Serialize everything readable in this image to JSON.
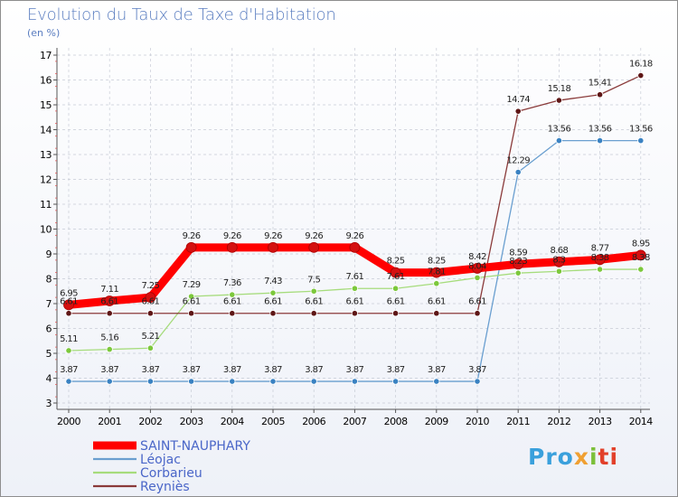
{
  "title": "Evolution du Taux de Taxe d'Habitation",
  "subtitle": "(en %)",
  "logo": {
    "p1": "Pro",
    "p2": "x",
    "p3": "i",
    "p4": "ti"
  },
  "chart_data": {
    "type": "line",
    "x": [
      2000,
      2001,
      2002,
      2003,
      2004,
      2005,
      2006,
      2007,
      2008,
      2009,
      2010,
      2011,
      2012,
      2013,
      2014
    ],
    "ylim": [
      3,
      17
    ],
    "yticks": [
      3,
      4,
      5,
      6,
      7,
      8,
      9,
      10,
      11,
      12,
      13,
      14,
      15,
      16,
      17
    ],
    "legend_position": "bottom-left",
    "series": [
      {
        "name": "SAINT-NAUPHARY",
        "color": "#ff0000",
        "marker": "#d41010",
        "values": [
          6.95,
          7.11,
          7.25,
          9.26,
          9.26,
          9.26,
          9.26,
          9.26,
          8.25,
          8.25,
          8.42,
          8.59,
          8.68,
          8.77,
          8.95
        ]
      },
      {
        "name": "Léojac",
        "color": "#6a9fd0",
        "marker": "#3a82c2",
        "values": [
          3.87,
          3.87,
          3.87,
          3.87,
          3.87,
          3.87,
          3.87,
          3.87,
          3.87,
          3.87,
          3.87,
          12.29,
          13.56,
          13.56,
          13.56
        ]
      },
      {
        "name": "Corbarieu",
        "color": "#a6dc7c",
        "marker": "#7cc83c",
        "values": [
          5.11,
          5.16,
          5.21,
          7.29,
          7.36,
          7.43,
          7.5,
          7.61,
          7.61,
          7.81,
          8.04,
          8.23,
          8.3,
          8.38,
          8.38
        ]
      },
      {
        "name": "Reyniès",
        "color": "#8a3a3a",
        "marker": "#5e1616",
        "values": [
          6.61,
          6.61,
          6.61,
          6.61,
          6.61,
          6.61,
          6.61,
          6.61,
          6.61,
          6.61,
          6.61,
          14.74,
          15.18,
          15.41,
          16.18
        ]
      }
    ],
    "data_labels": [
      {
        "series": 0,
        "texts": [
          "6.95",
          "7.11",
          "7.25",
          "9.26",
          "9.26",
          "9.26",
          "9.26",
          "9.26",
          "8.25",
          "8.25",
          "8.42",
          "8.59",
          "8.68",
          "8.77",
          "8.95"
        ]
      },
      {
        "series": 1,
        "texts": [
          "3.87",
          "3.87",
          "3.87",
          "3.87",
          "3.87",
          "3.87",
          "3.87",
          "3.87",
          "3.87",
          "3.87",
          "3.87",
          "12.29",
          "13.56",
          "13.56",
          "13.56"
        ]
      },
      {
        "series": 2,
        "texts": [
          "5.11",
          "5.16",
          "5.21",
          "7.29",
          "7.36",
          "7.43",
          "7.5",
          "7.61",
          "7.61",
          "7.81",
          "8.04",
          "8.23",
          "8.3",
          "8.38",
          "8.38"
        ]
      },
      {
        "series": 3,
        "texts": [
          "6.61",
          "6.61",
          "6.61",
          "6.61",
          "6.61",
          "6.61",
          "6.61",
          "6.61",
          "6.61",
          "6.61",
          "6.61",
          "14.74",
          "15.18",
          "15.41",
          "16.18"
        ]
      }
    ]
  }
}
